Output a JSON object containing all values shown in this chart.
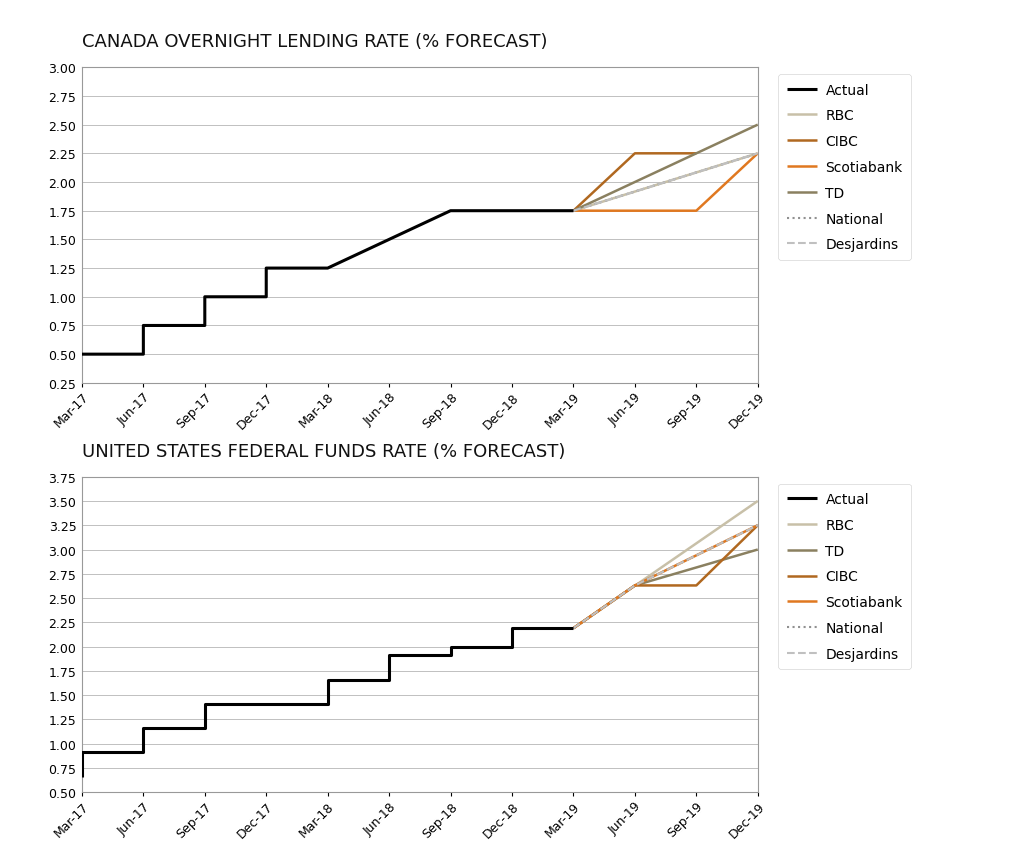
{
  "title1": "CANADA OVERNIGHT LENDING RATE (% FORECAST)",
  "title2": "UNITED STATES FEDERAL FUNDS RATE (% FORECAST)",
  "x_labels": [
    "Mar-17",
    "Jun-17",
    "Sep-17",
    "Dec-17",
    "Mar-18",
    "Jun-18",
    "Sep-18",
    "Dec-18",
    "Mar-19",
    "Jun-19",
    "Sep-19",
    "Dec-19"
  ],
  "canada": {
    "ylim": [
      0.25,
      3.0
    ],
    "yticks": [
      0.25,
      0.5,
      0.75,
      1.0,
      1.25,
      1.5,
      1.75,
      2.0,
      2.25,
      2.5,
      2.75,
      3.0
    ],
    "actual": {
      "x": [
        0,
        1,
        1,
        2,
        2,
        3,
        3,
        4,
        4,
        5,
        5,
        6,
        6,
        7,
        7,
        8
      ],
      "y": [
        0.5,
        0.5,
        0.75,
        0.75,
        1.0,
        1.0,
        1.25,
        1.25,
        1.25,
        1.5,
        1.5,
        1.75,
        1.75,
        1.75,
        1.75,
        1.75
      ],
      "color": "#000000",
      "lw": 2.2,
      "ls": "solid",
      "label": "Actual"
    },
    "forecasts": [
      {
        "label": "RBC",
        "color": "#c8c0a8",
        "lw": 1.8,
        "ls": "solid",
        "x": [
          8,
          11
        ],
        "y": [
          1.75,
          2.25
        ]
      },
      {
        "label": "CIBC",
        "color": "#b06820",
        "lw": 1.8,
        "ls": "solid",
        "x": [
          8,
          9,
          10
        ],
        "y": [
          1.75,
          2.25,
          2.25
        ]
      },
      {
        "label": "Scotiabank",
        "color": "#e07820",
        "lw": 1.8,
        "ls": "solid",
        "x": [
          8,
          10,
          11
        ],
        "y": [
          1.75,
          1.75,
          2.25
        ]
      },
      {
        "label": "TD",
        "color": "#8a8060",
        "lw": 1.8,
        "ls": "solid",
        "x": [
          8,
          11
        ],
        "y": [
          1.75,
          2.5
        ]
      },
      {
        "label": "National",
        "color": "#909090",
        "lw": 1.5,
        "ls": "dotted",
        "x": [
          8,
          11
        ],
        "y": [
          1.75,
          2.25
        ]
      },
      {
        "label": "Desjardins",
        "color": "#c0c0c0",
        "lw": 1.5,
        "ls": "dashed",
        "x": [
          8,
          11
        ],
        "y": [
          1.75,
          2.25
        ]
      }
    ]
  },
  "us": {
    "ylim": [
      0.5,
      3.75
    ],
    "yticks": [
      0.5,
      0.75,
      1.0,
      1.25,
      1.5,
      1.75,
      2.0,
      2.25,
      2.5,
      2.75,
      3.0,
      3.25,
      3.5,
      3.75
    ],
    "actual": {
      "x": [
        0,
        0,
        1,
        1,
        2,
        2,
        2,
        3,
        3,
        3,
        3,
        4,
        4,
        4,
        4,
        5,
        5,
        5,
        6,
        6,
        6,
        6,
        7,
        7,
        7,
        8
      ],
      "y": [
        0.66,
        0.91,
        0.91,
        1.16,
        1.16,
        1.16,
        1.41,
        1.41,
        1.41,
        1.41,
        1.41,
        1.41,
        1.41,
        1.66,
        1.66,
        1.66,
        1.91,
        1.91,
        1.91,
        1.91,
        2.0,
        2.0,
        2.0,
        2.19,
        2.19,
        2.19
      ],
      "color": "#000000",
      "lw": 2.2,
      "ls": "solid",
      "label": "Actual"
    },
    "forecasts": [
      {
        "label": "RBC",
        "color": "#c8c0a8",
        "lw": 1.8,
        "ls": "solid",
        "x": [
          8,
          11
        ],
        "y": [
          2.19,
          3.5
        ]
      },
      {
        "label": "TD",
        "color": "#8a8060",
        "lw": 1.8,
        "ls": "solid",
        "x": [
          8,
          9,
          11
        ],
        "y": [
          2.19,
          2.63,
          3.0
        ]
      },
      {
        "label": "CIBC",
        "color": "#b06820",
        "lw": 1.8,
        "ls": "solid",
        "x": [
          8,
          9,
          10,
          11
        ],
        "y": [
          2.19,
          2.63,
          2.63,
          3.25
        ]
      },
      {
        "label": "Scotiabank",
        "color": "#e07820",
        "lw": 1.8,
        "ls": "solid",
        "x": [
          8,
          9,
          11
        ],
        "y": [
          2.19,
          2.63,
          3.25
        ]
      },
      {
        "label": "National",
        "color": "#909090",
        "lw": 1.5,
        "ls": "dotted",
        "x": [
          8,
          9,
          11
        ],
        "y": [
          2.19,
          2.63,
          3.25
        ]
      },
      {
        "label": "Desjardins",
        "color": "#c0c0c0",
        "lw": 1.5,
        "ls": "dashed",
        "x": [
          8,
          9,
          11
        ],
        "y": [
          2.19,
          2.63,
          3.25
        ]
      }
    ]
  },
  "bg_color": "#ffffff",
  "plot_bg_color": "#ffffff",
  "grid_color": "#c0c0c0",
  "title_fontsize": 13,
  "tick_fontsize": 9,
  "legend_fontsize": 10
}
